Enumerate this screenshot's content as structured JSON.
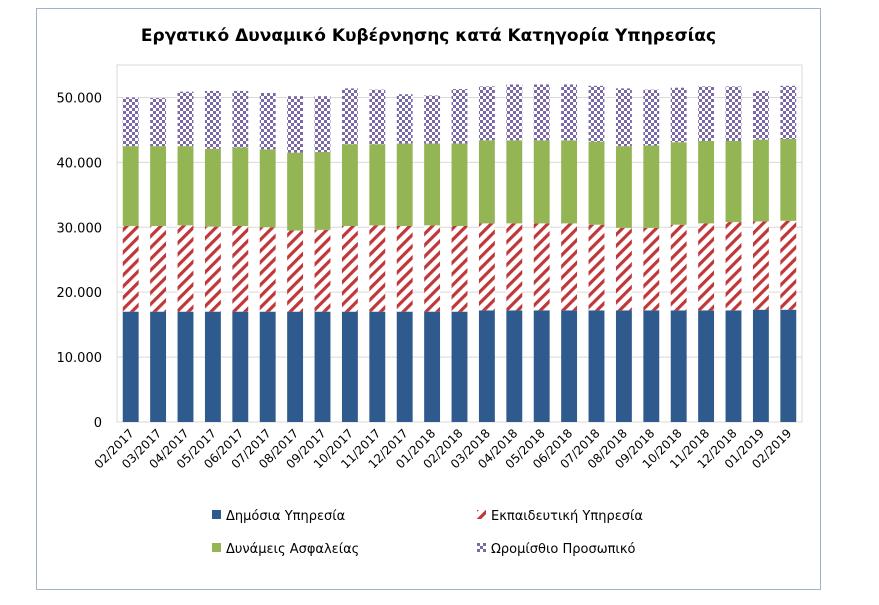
{
  "chart_data": {
    "type": "bar",
    "stacked": true,
    "title": "Εργατικό Δυναμικό Κυβέρνησης κατά Κατηγορία Υπηρεσίας",
    "xlabel": "",
    "ylabel": "",
    "ylim": [
      0,
      55000
    ],
    "yticks": [
      0,
      10000,
      20000,
      30000,
      40000,
      50000
    ],
    "ytick_labels": [
      "0",
      "10.000",
      "20.000",
      "30.000",
      "40.000",
      "50.000"
    ],
    "grid": true,
    "legend_position": "bottom",
    "categories": [
      "02/2017",
      "03/2017",
      "04/2017",
      "05/2017",
      "06/2017",
      "07/2017",
      "08/2017",
      "09/2017",
      "10/2017",
      "11/2017",
      "12/2017",
      "01/2018",
      "02/2018",
      "03/2018",
      "04/2018",
      "05/2018",
      "06/2018",
      "07/2018",
      "08/2018",
      "09/2018",
      "10/2018",
      "11/2018",
      "12/2018",
      "01/2019",
      "02/2019"
    ],
    "series": [
      {
        "name": "Δημόσια Υπηρεσία",
        "color": "#2e5a8e",
        "pattern": "solid",
        "values": [
          17000,
          17000,
          17000,
          17000,
          17000,
          17000,
          17000,
          17000,
          17000,
          17000,
          17000,
          17000,
          17000,
          17200,
          17200,
          17200,
          17200,
          17200,
          17200,
          17200,
          17200,
          17200,
          17200,
          17300,
          17300
        ]
      },
      {
        "name": "Εκπαιδευτική Υπηρεσία",
        "color": "#c0373a",
        "pattern": "diagonal",
        "values": [
          13200,
          13200,
          13300,
          13100,
          13200,
          13000,
          12500,
          12600,
          13200,
          13300,
          13200,
          13300,
          13200,
          13400,
          13400,
          13400,
          13400,
          13200,
          12700,
          12700,
          13200,
          13400,
          13600,
          13600,
          13700
        ]
      },
      {
        "name": "Δυνάμεις Ασφαλείας",
        "color": "#93b553",
        "pattern": "solid",
        "values": [
          12300,
          12300,
          12200,
          12000,
          12100,
          12000,
          12000,
          12000,
          12600,
          12500,
          12700,
          12600,
          12700,
          12800,
          12800,
          12800,
          12800,
          12800,
          12600,
          12700,
          12700,
          12700,
          12500,
          12600,
          12600
        ]
      },
      {
        "name": "Ωρομίσθιο Προσωπικό",
        "color": "#7b68a8",
        "pattern": "checker",
        "values": [
          7500,
          7400,
          8400,
          8900,
          8700,
          8700,
          8700,
          8600,
          8600,
          8400,
          7600,
          7400,
          8400,
          8300,
          8600,
          8600,
          8600,
          8600,
          8900,
          8600,
          8400,
          8400,
          8400,
          7500,
          8200
        ]
      }
    ]
  }
}
